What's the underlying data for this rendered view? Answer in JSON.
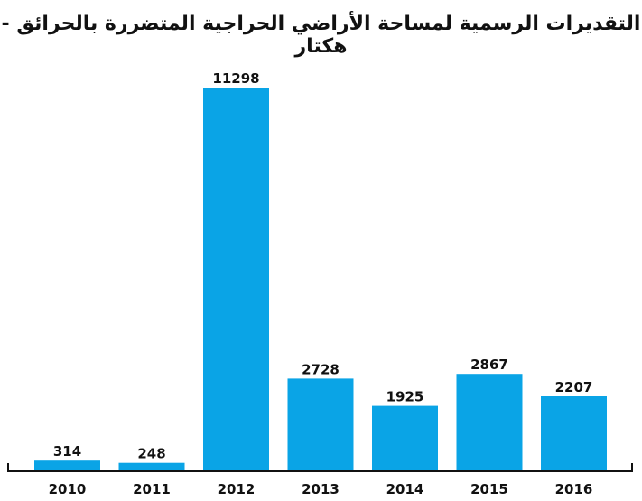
{
  "chart_data": {
    "type": "bar",
    "title": "التقديرات الرسمية لمساحة الأراضي الحراجية المتضررة بالحرائق - هكتار",
    "xlabel": "",
    "ylabel": "",
    "categories": [
      "2010",
      "2011",
      "2012",
      "2013",
      "2014",
      "2015",
      "2016"
    ],
    "values": [
      314,
      248,
      11298,
      2728,
      1925,
      2867,
      2207
    ],
    "ylim": [
      0,
      12000
    ],
    "grid": false,
    "legend": "none",
    "bar_color": "#0aa4e6",
    "axis_color": "#111111"
  }
}
